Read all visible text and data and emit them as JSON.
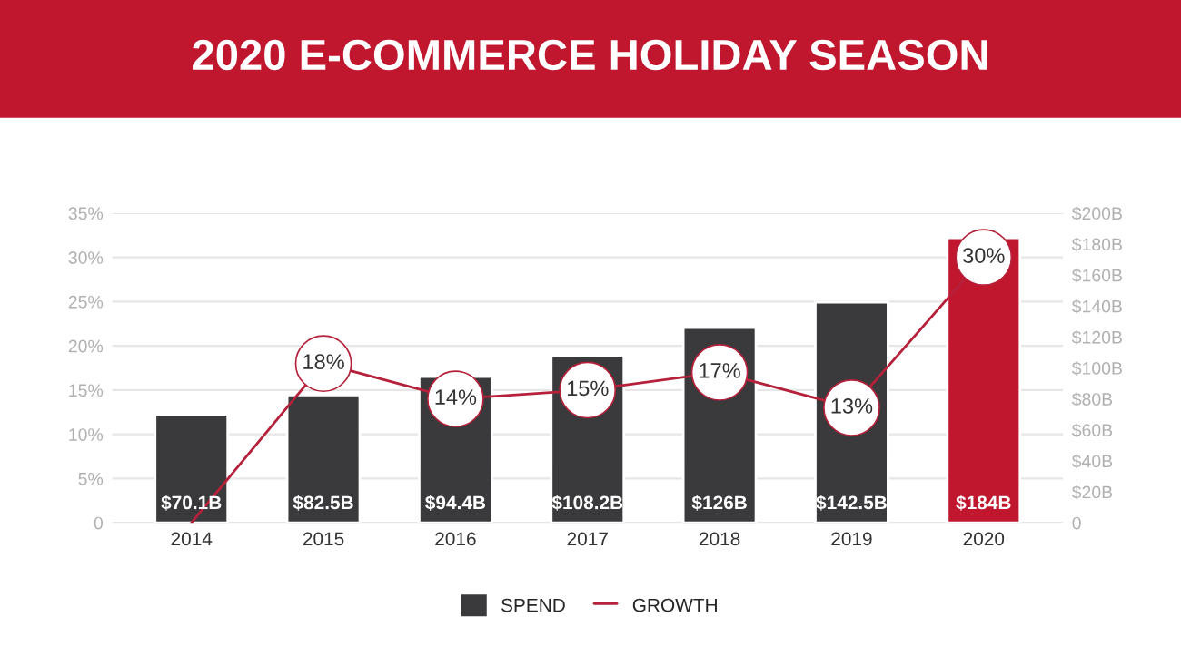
{
  "chart_data": {
    "type": "bar",
    "title": "2020 E-COMMERCE HOLIDAY SEASON",
    "categories": [
      "2014",
      "2015",
      "2016",
      "2017",
      "2018",
      "2019",
      "2020"
    ],
    "series": [
      {
        "name": "SPEND",
        "axis": "y2",
        "color": "#3a393b",
        "colors": [
          "#3a393b",
          "#3a393b",
          "#3a393b",
          "#3a393b",
          "#3a393b",
          "#3a393b",
          "#c0172f"
        ],
        "values": [
          70.1,
          82.5,
          94.4,
          108.2,
          126,
          142.5,
          184
        ],
        "value_labels": [
          "$70.1B",
          "$82.5B",
          "$94.4B",
          "$108.2B",
          "$126B",
          "$142.5B",
          "$184B"
        ]
      },
      {
        "name": "GROWTH",
        "type": "line",
        "axis": "y",
        "color": "#b5213a",
        "values": [
          0,
          18,
          14,
          15,
          17,
          13,
          30
        ],
        "value_labels": [
          null,
          "18%",
          "14%",
          "15%",
          "17%",
          "13%",
          "30%"
        ]
      }
    ],
    "ylim": [
      0,
      35
    ],
    "yticks": [
      0,
      {
        "value": 5,
        "label": "5%"
      },
      {
        "value": 10,
        "label": "10%"
      },
      {
        "value": 15,
        "label": "15%"
      },
      {
        "value": 20,
        "label": "20%"
      },
      {
        "value": 25,
        "label": "25%"
      },
      {
        "value": 30,
        "label": "30%"
      },
      {
        "value": 35,
        "label": "35%"
      }
    ],
    "y2lim": [
      0,
      200
    ],
    "y2ticks": [
      0,
      {
        "value": 20,
        "label": "$20B"
      },
      {
        "value": 40,
        "label": "$40B"
      },
      {
        "value": 60,
        "label": "$60B"
      },
      {
        "value": 80,
        "label": "$80B"
      },
      {
        "value": 100,
        "label": "$100B"
      },
      {
        "value": 120,
        "label": "$120B"
      },
      {
        "value": 140,
        "label": "$140B"
      },
      {
        "value": 160,
        "label": "$160B"
      },
      {
        "value": 180,
        "label": "$180B"
      },
      {
        "value": 200,
        "label": "$200B"
      }
    ],
    "grid": "y",
    "legend": "bottom",
    "marker": "circle"
  }
}
